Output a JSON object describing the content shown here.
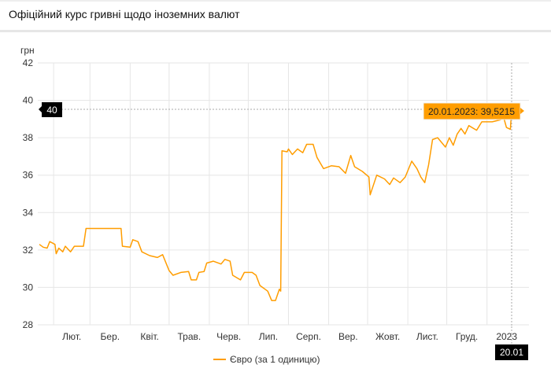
{
  "header": {
    "title": "Офіційний курс гривні щодо іноземних валют"
  },
  "colors": {
    "series": "#ff9d00",
    "tooltip_bg": "#ff9d00",
    "badge_bg": "#000000",
    "grid": "#e6e6e6"
  },
  "chart_data": {
    "type": "line",
    "ylabel": "грн",
    "ylim": [
      28,
      42
    ],
    "yticks": [
      "42",
      "40",
      "38",
      "36",
      "34",
      "32",
      "30",
      "28"
    ],
    "xlim": [
      "2022-01-21",
      "2023-01-20"
    ],
    "xtick_labels": [
      "Лют.",
      "Бер.",
      "Квіт.",
      "Трав.",
      "Черв.",
      "Лип.",
      "Серп.",
      "Вер.",
      "Жовт.",
      "Лист.",
      "Груд.",
      "2023"
    ],
    "grid": true,
    "legend_placement": "bottom",
    "series": [
      {
        "name": "Євро (за 1 одиницю)",
        "points": [
          [
            "2022-01-21",
            32.3
          ],
          [
            "2022-01-24",
            32.15
          ],
          [
            "2022-01-27",
            32.1
          ],
          [
            "2022-01-29",
            32.45
          ],
          [
            "2022-02-02",
            32.3
          ],
          [
            "2022-02-03",
            31.8
          ],
          [
            "2022-02-05",
            32.1
          ],
          [
            "2022-02-08",
            31.9
          ],
          [
            "2022-02-10",
            32.2
          ],
          [
            "2022-02-14",
            31.9
          ],
          [
            "2022-02-17",
            32.2
          ],
          [
            "2022-02-24",
            32.2
          ],
          [
            "2022-02-26",
            33.15
          ],
          [
            "2022-03-25",
            33.15
          ],
          [
            "2022-03-26",
            32.2
          ],
          [
            "2022-04-01",
            32.15
          ],
          [
            "2022-04-03",
            32.55
          ],
          [
            "2022-04-07",
            32.45
          ],
          [
            "2022-04-10",
            31.9
          ],
          [
            "2022-04-16",
            31.7
          ],
          [
            "2022-04-22",
            31.6
          ],
          [
            "2022-04-26",
            31.75
          ],
          [
            "2022-05-01",
            30.9
          ],
          [
            "2022-05-04",
            30.65
          ],
          [
            "2022-05-10",
            30.8
          ],
          [
            "2022-05-16",
            30.85
          ],
          [
            "2022-05-18",
            30.4
          ],
          [
            "2022-05-22",
            30.4
          ],
          [
            "2022-05-24",
            30.8
          ],
          [
            "2022-05-28",
            30.85
          ],
          [
            "2022-05-30",
            31.3
          ],
          [
            "2022-06-04",
            31.4
          ],
          [
            "2022-06-10",
            31.25
          ],
          [
            "2022-06-13",
            31.5
          ],
          [
            "2022-06-17",
            31.4
          ],
          [
            "2022-06-19",
            30.65
          ],
          [
            "2022-06-25",
            30.4
          ],
          [
            "2022-06-28",
            30.8
          ],
          [
            "2022-07-04",
            30.8
          ],
          [
            "2022-07-07",
            30.65
          ],
          [
            "2022-07-10",
            30.1
          ],
          [
            "2022-07-16",
            29.8
          ],
          [
            "2022-07-19",
            29.3
          ],
          [
            "2022-07-22",
            29.3
          ],
          [
            "2022-07-25",
            29.9
          ],
          [
            "2022-07-26",
            29.8
          ],
          [
            "2022-07-27",
            37.3
          ],
          [
            "2022-07-31",
            37.25
          ],
          [
            "2022-08-01",
            37.4
          ],
          [
            "2022-08-04",
            37.1
          ],
          [
            "2022-08-08",
            37.4
          ],
          [
            "2022-08-12",
            37.2
          ],
          [
            "2022-08-15",
            37.65
          ],
          [
            "2022-08-20",
            37.65
          ],
          [
            "2022-08-23",
            36.95
          ],
          [
            "2022-08-28",
            36.35
          ],
          [
            "2022-09-03",
            36.5
          ],
          [
            "2022-09-09",
            36.45
          ],
          [
            "2022-09-14",
            36.1
          ],
          [
            "2022-09-18",
            37.05
          ],
          [
            "2022-09-21",
            36.45
          ],
          [
            "2022-09-27",
            36.2
          ],
          [
            "2022-10-02",
            35.9
          ],
          [
            "2022-10-03",
            34.95
          ],
          [
            "2022-10-08",
            36.0
          ],
          [
            "2022-10-14",
            35.8
          ],
          [
            "2022-10-18",
            35.5
          ],
          [
            "2022-10-21",
            35.85
          ],
          [
            "2022-10-26",
            35.6
          ],
          [
            "2022-10-30",
            35.9
          ],
          [
            "2022-11-04",
            36.75
          ],
          [
            "2022-11-08",
            36.35
          ],
          [
            "2022-11-11",
            35.9
          ],
          [
            "2022-11-14",
            35.6
          ],
          [
            "2022-11-17",
            36.55
          ],
          [
            "2022-11-20",
            37.9
          ],
          [
            "2022-11-24",
            38.0
          ],
          [
            "2022-11-30",
            37.5
          ],
          [
            "2022-12-03",
            38.0
          ],
          [
            "2022-12-06",
            37.6
          ],
          [
            "2022-12-09",
            38.2
          ],
          [
            "2022-12-12",
            38.5
          ],
          [
            "2022-12-15",
            38.2
          ],
          [
            "2022-12-18",
            38.65
          ],
          [
            "2022-12-24",
            38.4
          ],
          [
            "2022-12-28",
            38.85
          ],
          [
            "2023-01-05",
            38.85
          ],
          [
            "2023-01-11",
            38.95
          ],
          [
            "2023-01-14",
            39.05
          ],
          [
            "2023-01-16",
            38.55
          ],
          [
            "2023-01-19",
            38.45
          ],
          [
            "2023-01-20",
            39.5215
          ]
        ]
      }
    ],
    "crosshair": {
      "y_badge": "40",
      "x_badge": "20.01",
      "tooltip": "20.01.2023: 39,5215"
    }
  }
}
